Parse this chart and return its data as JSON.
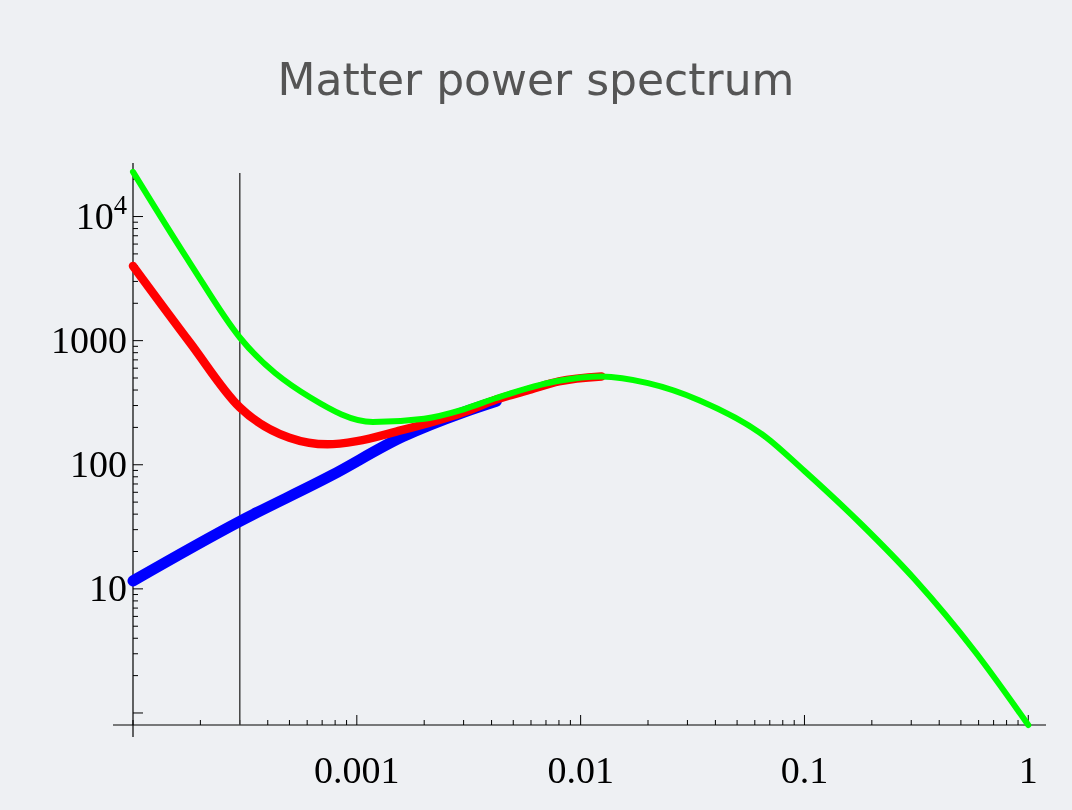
{
  "chart_data": {
    "type": "line",
    "title": "Matter power spectrum",
    "log": "xy",
    "grid": false,
    "marker": "none",
    "line_style": "solid",
    "xlim": [
      0.0001,
      1.2
    ],
    "ylim": [
      0.8,
      27000
    ],
    "xticks": [
      {
        "value": 0.0001,
        "label": null
      },
      {
        "value": 0.0002,
        "label": null
      },
      {
        "value": 0.0003,
        "label": null
      },
      {
        "value": 0.0004,
        "label": null
      },
      {
        "value": 0.0005,
        "label": null
      },
      {
        "value": 0.0006,
        "label": null
      },
      {
        "value": 0.0007,
        "label": null
      },
      {
        "value": 0.0008,
        "label": null
      },
      {
        "value": 0.0009,
        "label": null
      },
      0.001,
      {
        "value": 0.002,
        "label": null
      },
      {
        "value": 0.003,
        "label": null
      },
      {
        "value": 0.004,
        "label": null
      },
      {
        "value": 0.005,
        "label": null
      },
      {
        "value": 0.006,
        "label": null
      },
      {
        "value": 0.007,
        "label": null
      },
      {
        "value": 0.008,
        "label": null
      },
      {
        "value": 0.009,
        "label": null
      },
      0.01,
      {
        "value": 0.02,
        "label": null
      },
      {
        "value": 0.03,
        "label": null
      },
      {
        "value": 0.04,
        "label": null
      },
      {
        "value": 0.05,
        "label": null
      },
      {
        "value": 0.06,
        "label": null
      },
      {
        "value": 0.07,
        "label": null
      },
      {
        "value": 0.08,
        "label": null
      },
      {
        "value": 0.09,
        "label": null
      },
      0.1,
      {
        "value": 0.2,
        "label": null
      },
      {
        "value": 0.3,
        "label": null
      },
      {
        "value": 0.4,
        "label": null
      },
      {
        "value": 0.5,
        "label": null
      },
      {
        "value": 0.6,
        "label": null
      },
      {
        "value": 0.7,
        "label": null
      },
      {
        "value": 0.8,
        "label": null
      },
      {
        "value": 0.9,
        "label": null
      },
      1
    ],
    "yticks": [
      {
        "value": 1,
        "label": null
      },
      {
        "value": 2,
        "label": null
      },
      {
        "value": 3,
        "label": null
      },
      {
        "value": 4,
        "label": null
      },
      {
        "value": 5,
        "label": null
      },
      {
        "value": 6,
        "label": null
      },
      {
        "value": 7,
        "label": null
      },
      {
        "value": 8,
        "label": null
      },
      {
        "value": 9,
        "label": null
      },
      10,
      {
        "value": 20,
        "label": null
      },
      {
        "value": 30,
        "label": null
      },
      {
        "value": 40,
        "label": null
      },
      {
        "value": 50,
        "label": null
      },
      {
        "value": 60,
        "label": null
      },
      {
        "value": 70,
        "label": null
      },
      {
        "value": 80,
        "label": null
      },
      {
        "value": 90,
        "label": null
      },
      100,
      {
        "value": 200,
        "label": null
      },
      {
        "value": 300,
        "label": null
      },
      {
        "value": 400,
        "label": null
      },
      {
        "value": 500,
        "label": null
      },
      {
        "value": 600,
        "label": null
      },
      {
        "value": 700,
        "label": null
      },
      {
        "value": 800,
        "label": null
      },
      {
        "value": 900,
        "label": null
      },
      1000,
      {
        "value": 2000,
        "label": null
      },
      {
        "value": 3000,
        "label": null
      },
      {
        "value": 4000,
        "label": null
      },
      {
        "value": 5000,
        "label": null
      },
      {
        "value": 6000,
        "label": null
      },
      {
        "value": 7000,
        "label": null
      },
      {
        "value": 8000,
        "label": null
      },
      {
        "value": 9000,
        "label": null
      },
      {
        "value": 10000,
        "label": "10$^{4}$"
      },
      {
        "value": 20000,
        "label": null
      }
    ],
    "ref_lines": [
      {
        "axis": "x",
        "value": 0.0003,
        "color": "#444444"
      }
    ],
    "series": [
      {
        "color": "#0000ff",
        "x": [
          0.0001,
          0.0003,
          0.00077,
          0.0016,
          0.003,
          0.0042
        ],
        "values": [
          11.6,
          35,
          82,
          168,
          265,
          325
        ]
      },
      {
        "color": "#ff0000",
        "x": [
          0.0001,
          0.00018,
          0.0003,
          0.0005,
          0.00074,
          0.001,
          0.0015,
          0.003,
          0.0042,
          0.006,
          0.008,
          0.0124
        ],
        "values": [
          4000,
          960,
          290,
          165,
          146,
          155,
          185,
          265,
          335,
          405,
          470,
          515
        ]
      },
      {
        "color": "#00ff00",
        "x": [
          0.0001,
          0.00018,
          0.0003,
          0.00062,
          0.00118,
          0.002,
          0.003,
          0.0042,
          0.0066,
          0.008,
          0.0124,
          0.02,
          0.034,
          0.067,
          0.1,
          0.18,
          0.31,
          0.58,
          1
        ],
        "values": [
          22900,
          4200,
          1060,
          348,
          221,
          235,
          280,
          345,
          440,
          475,
          515,
          455,
          330,
          168,
          89,
          33,
          12,
          3.1,
          0.8
        ]
      }
    ]
  }
}
